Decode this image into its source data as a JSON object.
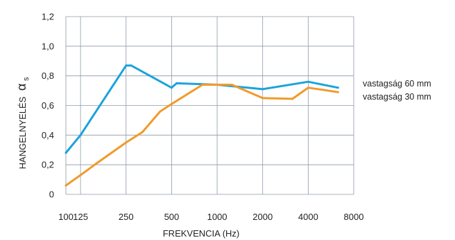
{
  "chart_data": {
    "type": "line",
    "title": "",
    "xlabel": "FREKVENCIA (Hz)",
    "ylabel": "HANGELNYELÉS",
    "ylabel_symbol": "α",
    "ylabel_subscript": "s",
    "x_scale": "log",
    "x_ticks": [
      100,
      125,
      250,
      500,
      1000,
      2000,
      4000,
      8000
    ],
    "x_tick_labels": [
      "100",
      "125",
      "250",
      "500",
      "1000",
      "2000",
      "4000",
      "8000"
    ],
    "ylim": [
      0,
      1.2
    ],
    "y_ticks": [
      0,
      0.2,
      0.4,
      0.6,
      0.8,
      1.0,
      1.2
    ],
    "y_tick_labels": [
      "0",
      "0,2",
      "0,4",
      "0,6",
      "0,8",
      "1,0",
      "1,2"
    ],
    "grid": true,
    "legend_position": "right",
    "series": [
      {
        "name": "vastagság 60 mm",
        "color": "#1aa3dc",
        "x": [
          100,
          125,
          250,
          270,
          500,
          540,
          1000,
          2000,
          4000,
          6300
        ],
        "y": [
          0.28,
          0.4,
          0.87,
          0.87,
          0.72,
          0.75,
          0.74,
          0.71,
          0.76,
          0.72
        ]
      },
      {
        "name": "vastagság 30 mm",
        "color": "#f09a2a",
        "x": [
          100,
          125,
          160,
          250,
          320,
          420,
          500,
          800,
          1250,
          2000,
          3150,
          4000,
          6300
        ],
        "y": [
          0.06,
          0.13,
          0.21,
          0.35,
          0.42,
          0.56,
          0.61,
          0.74,
          0.74,
          0.65,
          0.645,
          0.72,
          0.69
        ]
      }
    ]
  }
}
